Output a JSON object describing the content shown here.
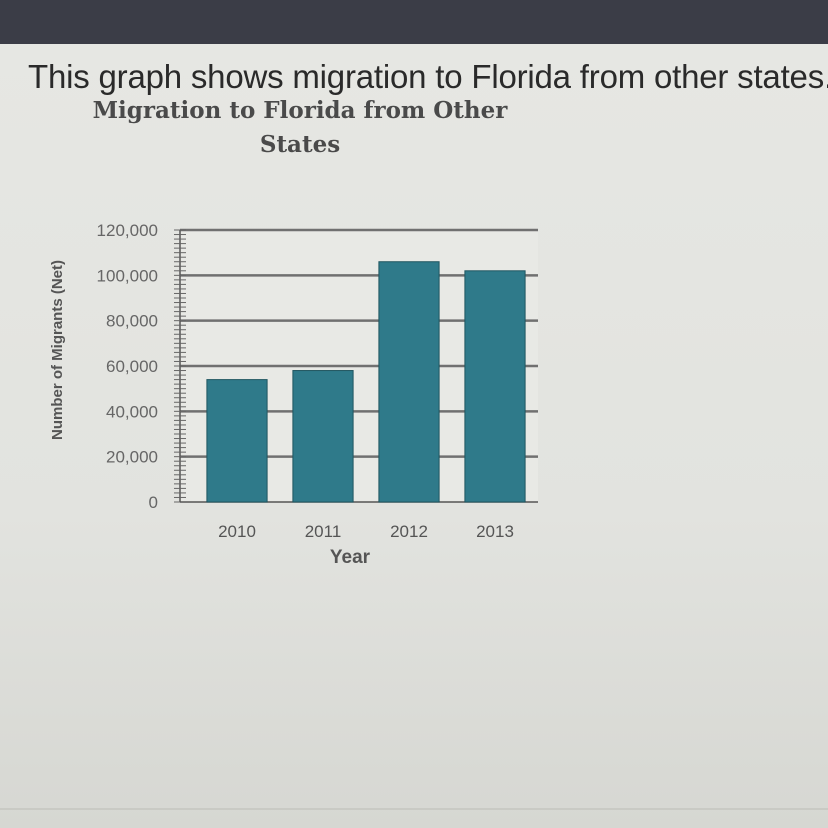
{
  "prompt": "This graph shows migration to Florida from other states.",
  "chart_data": {
    "type": "bar",
    "title": "Migration to Florida from Other States",
    "xlabel": "Year",
    "ylabel": "Number of Migrants (Net)",
    "categories": [
      "2010",
      "2011",
      "2012",
      "2013"
    ],
    "values": [
      54000,
      58000,
      106000,
      102000
    ],
    "ylim": [
      0,
      120000
    ],
    "yticks": [
      0,
      20000,
      40000,
      60000,
      80000,
      100000,
      120000
    ],
    "ytick_labels": [
      "0",
      "20,000",
      "40,000",
      "60,000",
      "80,000",
      "100,000",
      "120,000"
    ],
    "grid": true,
    "bar_color": "#2f7a8a"
  }
}
